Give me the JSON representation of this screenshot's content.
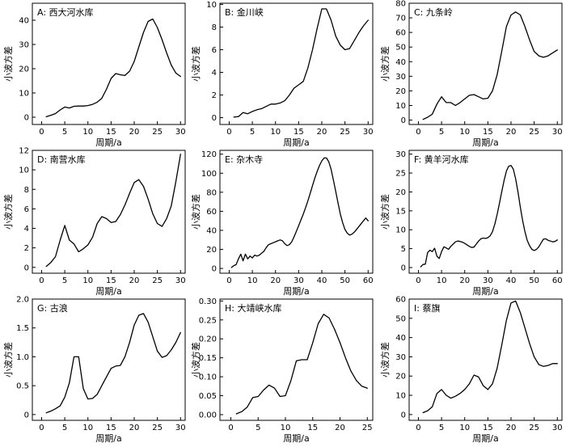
{
  "chart_data": [
    {
      "type": "line",
      "panel": "A",
      "title": "A: 西大河水库",
      "xlabel": "周期/a",
      "ylabel": "小波方差",
      "xlim": [
        -2,
        31
      ],
      "ylim": [
        -3,
        47
      ],
      "xticks": [
        0,
        5,
        10,
        15,
        20,
        25,
        30
      ],
      "yticks": [
        0,
        10,
        20,
        30,
        40
      ],
      "x": [
        1,
        2,
        3,
        4,
        5,
        6,
        7,
        8,
        9,
        10,
        11,
        12,
        13,
        14,
        15,
        16,
        17,
        18,
        19,
        20,
        21,
        22,
        23,
        24,
        25,
        26,
        27,
        28,
        29,
        30
      ],
      "values": [
        0.2,
        0.8,
        1.5,
        3,
        4.2,
        3.8,
        4.5,
        4.6,
        4.6,
        4.8,
        5.3,
        6.2,
        7.8,
        11.5,
        16,
        18,
        17.5,
        17.2,
        19,
        23,
        29,
        35,
        39.5,
        40.5,
        37,
        32,
        26.5,
        21.5,
        18.2,
        16.8
      ]
    },
    {
      "type": "line",
      "panel": "B",
      "title": "B: 金川峡",
      "xlabel": "周期/a",
      "ylabel": "小波方差",
      "xlim": [
        -2,
        31
      ],
      "ylim": [
        -0.6,
        10.1
      ],
      "xticks": [
        0,
        5,
        10,
        15,
        20,
        25,
        30
      ],
      "yticks": [
        0,
        2,
        4,
        6,
        8,
        10
      ],
      "x": [
        1,
        2,
        3,
        4,
        5,
        6,
        7,
        8,
        9,
        10,
        11,
        12,
        13,
        14,
        15,
        16,
        17,
        18,
        19,
        20,
        21,
        22,
        23,
        24,
        25,
        26,
        27,
        28,
        29,
        30
      ],
      "values": [
        0.05,
        0.1,
        0.45,
        0.35,
        0.55,
        0.7,
        0.8,
        1.0,
        1.2,
        1.2,
        1.3,
        1.5,
        2.0,
        2.6,
        2.9,
        3.2,
        4.4,
        6.0,
        7.9,
        9.6,
        9.6,
        8.6,
        7.2,
        6.4,
        6.0,
        6.1,
        6.8,
        7.5,
        8.1,
        8.6
      ]
    },
    {
      "type": "line",
      "panel": "C",
      "title": "C: 九条岭",
      "xlabel": "周期/a",
      "ylabel": "小波方差",
      "xlim": [
        -2,
        31
      ],
      "ylim": [
        -3,
        80
      ],
      "xticks": [
        0,
        5,
        10,
        15,
        20,
        25,
        30
      ],
      "yticks": [
        0,
        10,
        20,
        30,
        40,
        50,
        60,
        70,
        80
      ],
      "x": [
        1,
        2,
        3,
        4,
        5,
        6,
        7,
        8,
        9,
        10,
        11,
        12,
        13,
        14,
        15,
        16,
        17,
        18,
        19,
        20,
        21,
        22,
        23,
        24,
        25,
        26,
        27,
        28,
        29,
        30
      ],
      "values": [
        0.5,
        2,
        4,
        11,
        16,
        12,
        12,
        10,
        12,
        14.5,
        17,
        17.5,
        16,
        14.5,
        15,
        20,
        31,
        47,
        64,
        72,
        74,
        72,
        64,
        55,
        47,
        44,
        43,
        44,
        46,
        48
      ]
    },
    {
      "type": "line",
      "panel": "D",
      "title": "D: 南营水库",
      "xlabel": "周期/a",
      "ylabel": "小波方差",
      "xlim": [
        -2,
        31
      ],
      "ylim": [
        -0.6,
        12.0
      ],
      "xticks": [
        0,
        5,
        10,
        15,
        20,
        25,
        30
      ],
      "yticks": [
        0,
        2,
        4,
        6,
        8,
        10,
        12
      ],
      "x": [
        1,
        2,
        3,
        4,
        5,
        6,
        7,
        8,
        9,
        10,
        11,
        12,
        13,
        14,
        15,
        16,
        17,
        18,
        19,
        20,
        21,
        22,
        23,
        24,
        25,
        26,
        27,
        28,
        29,
        30
      ],
      "values": [
        0.1,
        0.5,
        1.1,
        2.8,
        4.3,
        2.8,
        2.4,
        1.6,
        1.9,
        2.3,
        3.1,
        4.5,
        5.2,
        5.0,
        4.6,
        4.7,
        5.4,
        6.4,
        7.6,
        8.7,
        9.0,
        8.3,
        7.0,
        5.5,
        4.5,
        4.2,
        5.0,
        6.3,
        8.8,
        11.6
      ]
    },
    {
      "type": "line",
      "panel": "E",
      "title": "E: 杂木寺",
      "xlabel": "周期/a",
      "ylabel": "小波方差",
      "xlim": [
        -4,
        62
      ],
      "ylim": [
        -5,
        124
      ],
      "xticks": [
        0,
        10,
        20,
        30,
        40,
        50,
        60
      ],
      "yticks": [
        0,
        20,
        40,
        60,
        80,
        100,
        120
      ],
      "x": [
        1,
        2,
        3,
        4,
        5,
        6,
        7,
        8,
        9,
        10,
        11,
        12,
        13,
        14,
        15,
        16,
        17,
        18,
        19,
        20,
        21,
        22,
        23,
        24,
        25,
        26,
        27,
        28,
        29,
        30,
        31,
        32,
        33,
        34,
        35,
        36,
        37,
        38,
        39,
        40,
        41,
        42,
        43,
        44,
        45,
        46,
        47,
        48,
        49,
        50,
        51,
        52,
        53,
        54,
        55,
        56,
        57,
        58,
        59,
        60
      ],
      "values": [
        1,
        3,
        4,
        10,
        15,
        8,
        15,
        10,
        13,
        11,
        14,
        13,
        14,
        16,
        18,
        22,
        25,
        26,
        27,
        28,
        29,
        30,
        29,
        26,
        24,
        25,
        28,
        33,
        39,
        45,
        51,
        57,
        64,
        71,
        79,
        87,
        95,
        102,
        108,
        113,
        116,
        116,
        112,
        104,
        93,
        81,
        69,
        57,
        48,
        41,
        37,
        35,
        36,
        38,
        41,
        44,
        47,
        50,
        53,
        50
      ]
    },
    {
      "type": "line",
      "panel": "F",
      "title": "F: 黄羊河水库",
      "xlabel": "周期/a",
      "ylabel": "小波方差",
      "xlim": [
        -4,
        62
      ],
      "ylim": [
        -1.5,
        31
      ],
      "xticks": [
        0,
        10,
        20,
        30,
        40,
        50,
        60
      ],
      "yticks": [
        0,
        5,
        10,
        15,
        20,
        25,
        30
      ],
      "x": [
        1,
        2,
        3,
        4,
        5,
        6,
        7,
        8,
        9,
        10,
        11,
        12,
        13,
        14,
        15,
        16,
        17,
        18,
        19,
        20,
        21,
        22,
        23,
        24,
        25,
        26,
        27,
        28,
        29,
        30,
        31,
        32,
        33,
        34,
        35,
        36,
        37,
        38,
        39,
        40,
        41,
        42,
        43,
        44,
        45,
        46,
        47,
        48,
        49,
        50,
        51,
        52,
        53,
        54,
        55,
        56,
        57,
        58,
        59,
        60
      ],
      "values": [
        0.2,
        0.8,
        0.9,
        4,
        4.6,
        4.2,
        5.1,
        3,
        2.4,
        4.2,
        5.5,
        5.2,
        4.8,
        5.6,
        6.2,
        6.8,
        7.0,
        6.9,
        6.7,
        6.4,
        6.0,
        5.6,
        5.3,
        5.4,
        6.2,
        7.0,
        7.6,
        7.8,
        7.7,
        7.9,
        8.4,
        9.5,
        11.5,
        14,
        17,
        20,
        23,
        25.5,
        26.8,
        27,
        26,
        23.5,
        20,
        16,
        12.5,
        9.5,
        7.2,
        5.8,
        4.8,
        4.5,
        4.8,
        5.5,
        6.5,
        7.5,
        7.6,
        7.2,
        7.0,
        6.8,
        6.9,
        7.3
      ]
    },
    {
      "type": "line",
      "panel": "G",
      "title": "G: 古浪",
      "xlabel": "周期/a",
      "ylabel": "小波方差",
      "xlim": [
        -2,
        31
      ],
      "ylim": [
        -0.1,
        2.0
      ],
      "xticks": [
        0,
        5,
        10,
        15,
        20,
        25,
        30
      ],
      "yticks": [
        0.0,
        0.5,
        1.0,
        1.5,
        2.0
      ],
      "ytick_labels": [
        "0",
        "0.5",
        "1.0",
        "1.5",
        "2.0"
      ],
      "x": [
        1,
        2,
        3,
        4,
        5,
        6,
        7,
        8,
        9,
        10,
        11,
        12,
        13,
        14,
        15,
        16,
        17,
        18,
        19,
        20,
        21,
        22,
        23,
        24,
        25,
        26,
        27,
        28,
        29,
        30
      ],
      "values": [
        0.03,
        0.06,
        0.1,
        0.15,
        0.3,
        0.55,
        1.0,
        1.0,
        0.45,
        0.27,
        0.28,
        0.35,
        0.5,
        0.65,
        0.8,
        0.84,
        0.85,
        1.0,
        1.25,
        1.55,
        1.72,
        1.75,
        1.6,
        1.35,
        1.1,
        0.99,
        1.02,
        1.12,
        1.25,
        1.42
      ]
    },
    {
      "type": "line",
      "panel": "H",
      "title": "H: 大靖峡水库",
      "xlabel": "周期/a",
      "ylabel": "小波方差",
      "xlim": [
        -2,
        26
      ],
      "ylim": [
        -0.015,
        0.305
      ],
      "xticks": [
        0,
        5,
        10,
        15,
        20,
        25
      ],
      "yticks": [
        0.0,
        0.05,
        0.1,
        0.15,
        0.2,
        0.25,
        0.3
      ],
      "ytick_labels": [
        "0.00",
        "0.05",
        "0.10",
        "0.15",
        "0.20",
        "0.25",
        "0.30"
      ],
      "x": [
        1,
        2,
        3,
        4,
        5,
        6,
        7,
        8,
        9,
        10,
        11,
        12,
        13,
        14,
        15,
        16,
        17,
        18,
        19,
        20,
        21,
        22,
        23,
        24,
        25
      ],
      "values": [
        0.002,
        0.008,
        0.02,
        0.045,
        0.048,
        0.065,
        0.078,
        0.07,
        0.048,
        0.05,
        0.09,
        0.142,
        0.145,
        0.145,
        0.19,
        0.24,
        0.265,
        0.255,
        0.225,
        0.19,
        0.15,
        0.115,
        0.09,
        0.075,
        0.07
      ]
    },
    {
      "type": "line",
      "panel": "I",
      "title": "I: 蔡旗",
      "xlabel": "周期/a",
      "ylabel": "小波方差",
      "xlim": [
        -2,
        31
      ],
      "ylim": [
        -3,
        60
      ],
      "xticks": [
        0,
        5,
        10,
        15,
        20,
        25,
        30
      ],
      "yticks": [
        0,
        10,
        20,
        30,
        40,
        50,
        60
      ],
      "x": [
        1,
        2,
        3,
        4,
        5,
        6,
        7,
        8,
        9,
        10,
        11,
        12,
        13,
        14,
        15,
        16,
        17,
        18,
        19,
        20,
        21,
        22,
        23,
        24,
        25,
        26,
        27,
        28,
        29,
        30
      ],
      "values": [
        1,
        2,
        4,
        11,
        13,
        10,
        8.5,
        9.5,
        11,
        13,
        16,
        20.5,
        19.5,
        15,
        13,
        16,
        24,
        36,
        49,
        58,
        59,
        53,
        45,
        37,
        30,
        26,
        25,
        25.5,
        26.5,
        26.5
      ]
    }
  ]
}
